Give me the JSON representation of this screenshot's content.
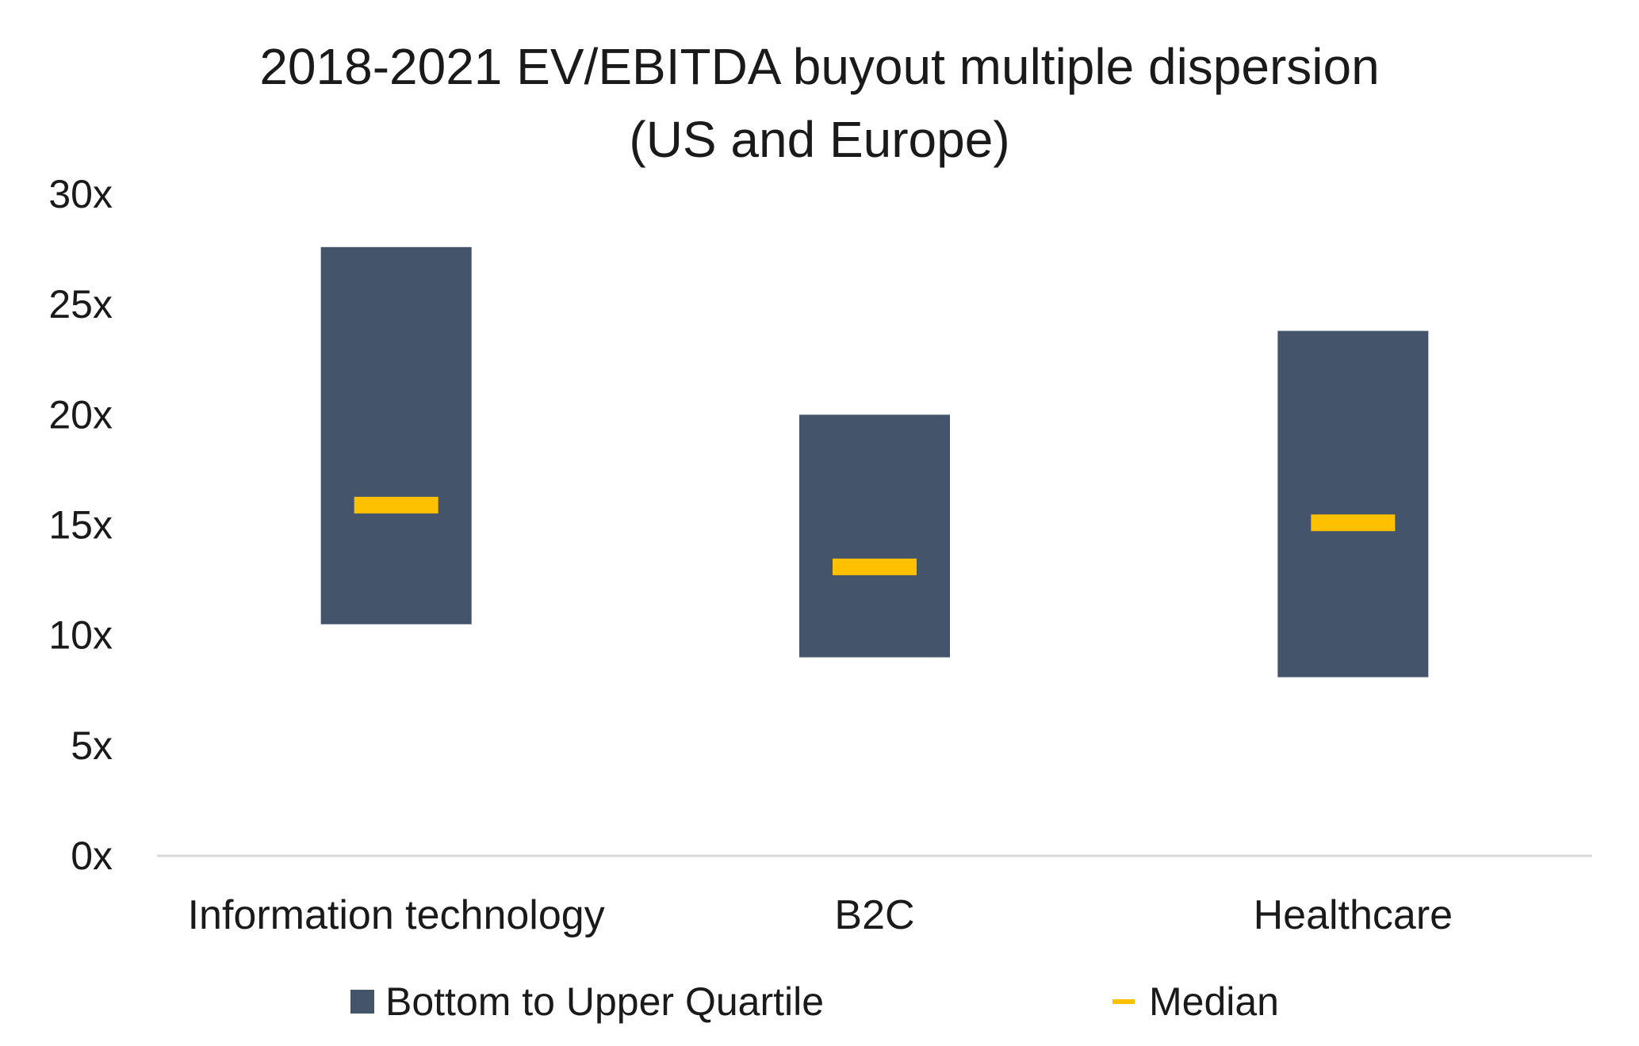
{
  "chart_data": {
    "type": "bar",
    "title_lines": [
      "2018-2021 EV/EBITDA buyout multiple dispersion",
      "(US and Europe)"
    ],
    "xlabel": "",
    "ylabel": "",
    "categories": [
      "Information technology",
      "B2C",
      "Healthcare"
    ],
    "series": [
      {
        "name": "Bottom to Upper Quartile",
        "kind": "floating-bar",
        "color": "#44546A",
        "low": [
          10.5,
          9.0,
          8.1
        ],
        "high": [
          27.6,
          20.0,
          23.8
        ]
      },
      {
        "name": "Median",
        "kind": "marker",
        "color": "#FFC000",
        "values": [
          15.9,
          13.1,
          15.1
        ]
      }
    ],
    "ylim": [
      0,
      30
    ],
    "yticks": [
      0,
      5,
      10,
      15,
      20,
      25,
      30
    ],
    "ytick_labels": [
      "0x",
      "5x",
      "10x",
      "15x",
      "20x",
      "25x",
      "30x"
    ],
    "grid": false,
    "legend_position": "bottom"
  }
}
